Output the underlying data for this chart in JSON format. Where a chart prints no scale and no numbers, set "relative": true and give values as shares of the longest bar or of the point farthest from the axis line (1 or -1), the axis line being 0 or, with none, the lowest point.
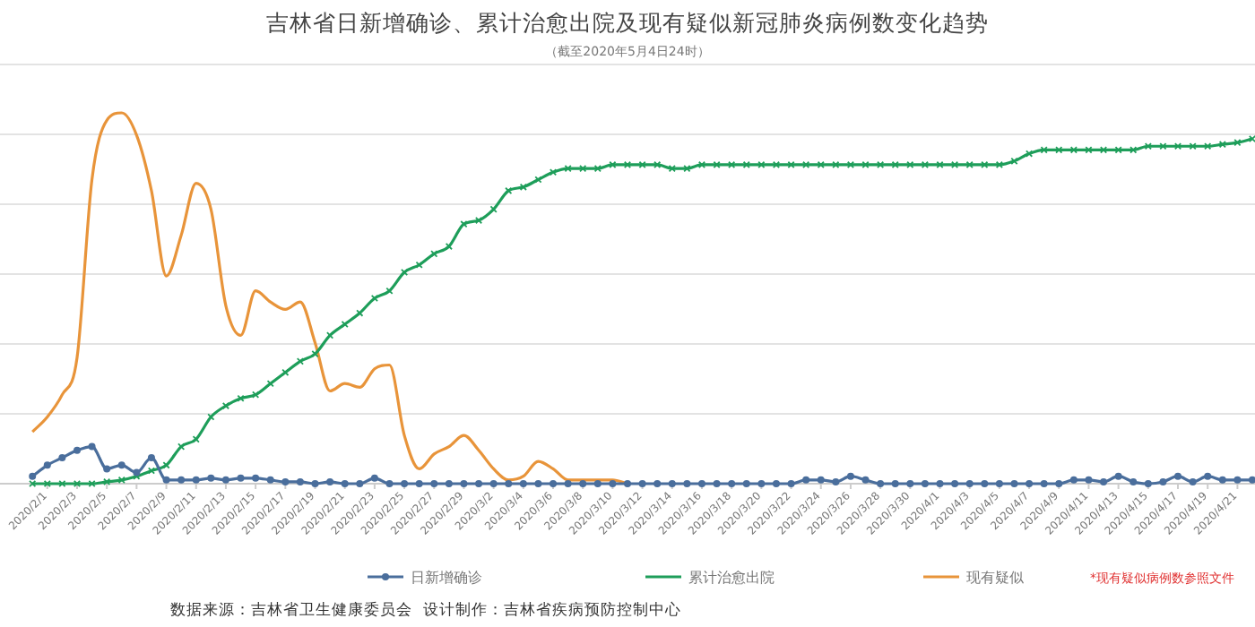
{
  "chart_data": {
    "type": "line",
    "title": "吉林省日新增确诊、累计治愈出院及现有疑似新冠肺炎病例数变化趋势",
    "subtitle": "（截至2020年5月4日24时）",
    "relative": true,
    "grid": "y",
    "legend": "bottom",
    "xlim": [
      "2020-01-29",
      "2020-04-22"
    ],
    "x": [
      "2020-01-31",
      "2020-02-01",
      "2020-02-02",
      "2020-02-03",
      "2020-02-04",
      "2020-02-05",
      "2020-02-06",
      "2020-02-07",
      "2020-02-08",
      "2020-02-09",
      "2020-02-10",
      "2020-02-11",
      "2020-02-12",
      "2020-02-13",
      "2020-02-14",
      "2020-02-15",
      "2020-02-16",
      "2020-02-17",
      "2020-02-18",
      "2020-02-19",
      "2020-02-20",
      "2020-02-21",
      "2020-02-22",
      "2020-02-23",
      "2020-02-24",
      "2020-02-25",
      "2020-02-26",
      "2020-02-27",
      "2020-02-28",
      "2020-02-29",
      "2020-03-01",
      "2020-03-02",
      "2020-03-03",
      "2020-03-04",
      "2020-03-05",
      "2020-03-06",
      "2020-03-07",
      "2020-03-08",
      "2020-03-09",
      "2020-03-10",
      "2020-03-11",
      "2020-03-12",
      "2020-03-13",
      "2020-03-14",
      "2020-03-15",
      "2020-03-16",
      "2020-03-17",
      "2020-03-18",
      "2020-03-19",
      "2020-03-20",
      "2020-03-21",
      "2020-03-22",
      "2020-03-23",
      "2020-03-24",
      "2020-03-25",
      "2020-03-26",
      "2020-03-27",
      "2020-03-28",
      "2020-03-29",
      "2020-03-30",
      "2020-03-31",
      "2020-04-01",
      "2020-04-02",
      "2020-04-03",
      "2020-04-04",
      "2020-04-05",
      "2020-04-06",
      "2020-04-07",
      "2020-04-08",
      "2020-04-09",
      "2020-04-10",
      "2020-04-11",
      "2020-04-12",
      "2020-04-13",
      "2020-04-14",
      "2020-04-15",
      "2020-04-16",
      "2020-04-17",
      "2020-04-18",
      "2020-04-19",
      "2020-04-20",
      "2020-04-21",
      "2020-04-22"
    ],
    "xticks": [
      {
        "value": "2020-02-01",
        "label": "2020/2/1"
      },
      {
        "value": "2020-02-03",
        "label": "2020/2/3"
      },
      {
        "value": "2020-02-05",
        "label": "2020/2/5"
      },
      {
        "value": "2020-02-07",
        "label": "2020/2/7"
      },
      {
        "value": "2020-02-09",
        "label": "2020/2/9"
      },
      {
        "value": "2020-02-11",
        "label": "2020/2/11"
      },
      {
        "value": "2020-02-13",
        "label": "2020/2/13"
      },
      {
        "value": "2020-02-15",
        "label": "2020/2/15"
      },
      {
        "value": "2020-02-17",
        "label": "2020/2/17"
      },
      {
        "value": "2020-02-19",
        "label": "2020/2/19"
      },
      {
        "value": "2020-02-21",
        "label": "2020/2/21"
      },
      {
        "value": "2020-02-23",
        "label": "2020/2/23"
      },
      {
        "value": "2020-02-25",
        "label": "2020/2/25"
      },
      {
        "value": "2020-02-27",
        "label": "2020/2/27"
      },
      {
        "value": "2020-02-29",
        "label": "2020/2/29"
      },
      {
        "value": "2020-03-02",
        "label": "2020/3/2"
      },
      {
        "value": "2020-03-04",
        "label": "2020/3/4"
      },
      {
        "value": "2020-03-06",
        "label": "2020/3/6"
      },
      {
        "value": "2020-03-08",
        "label": "2020/3/8"
      },
      {
        "value": "2020-03-10",
        "label": "2020/3/10"
      },
      {
        "value": "2020-03-12",
        "label": "2020/3/12"
      },
      {
        "value": "2020-03-14",
        "label": "2020/3/14"
      },
      {
        "value": "2020-03-16",
        "label": "2020/3/16"
      },
      {
        "value": "2020-03-18",
        "label": "2020/3/18"
      },
      {
        "value": "2020-03-20",
        "label": "2020/3/20"
      },
      {
        "value": "2020-03-22",
        "label": "2020/3/22"
      },
      {
        "value": "2020-03-24",
        "label": "2020/3/24"
      },
      {
        "value": "2020-03-26",
        "label": "2020/3/26"
      },
      {
        "value": "2020-03-28",
        "label": "2020/3/28"
      },
      {
        "value": "2020-03-30",
        "label": "2020/3/30"
      },
      {
        "value": "2020-04-01",
        "label": "2020/4/1"
      },
      {
        "value": "2020-04-03",
        "label": "2020/4/3"
      },
      {
        "value": "2020-04-05",
        "label": "2020/4/5"
      },
      {
        "value": "2020-04-07",
        "label": "2020/4/7"
      },
      {
        "value": "2020-04-09",
        "label": "2020/4/9"
      },
      {
        "value": "2020-04-11",
        "label": "2020/4/11"
      },
      {
        "value": "2020-04-13",
        "label": "2020/4/13"
      },
      {
        "value": "2020-04-15",
        "label": "2020/4/15"
      },
      {
        "value": "2020-04-17",
        "label": "2020/4/17"
      },
      {
        "value": "2020-04-19",
        "label": "2020/4/19"
      },
      {
        "value": "2020-04-21",
        "label": "2020/4/21"
      }
    ],
    "series": [
      {
        "name": "日新增确诊",
        "color": "#4a6e9c",
        "marker": "circle",
        "values": [
          0.02,
          0.05,
          0.07,
          0.09,
          0.1,
          0.04,
          0.05,
          0.03,
          0.07,
          0.01,
          0.01,
          0.01,
          0.015,
          0.01,
          0.015,
          0.015,
          0.01,
          0.005,
          0.005,
          0,
          0.005,
          0,
          0,
          0.015,
          0,
          0,
          0,
          0,
          0,
          0,
          0,
          0,
          0,
          0,
          0,
          0,
          0,
          0,
          0,
          0,
          0,
          0,
          0,
          0,
          0,
          0,
          0,
          0,
          0,
          0,
          0,
          0,
          0.01,
          0.01,
          0.005,
          0.02,
          0.01,
          0,
          0,
          0,
          0,
          0,
          0,
          0,
          0,
          0,
          0,
          0,
          0,
          0,
          0.01,
          0.01,
          0.005,
          0.02,
          0.005,
          0,
          0.005,
          0.02,
          0.005,
          0.02,
          0.01,
          0.01,
          0.01
        ]
      },
      {
        "name": "累计治愈出院",
        "color": "#1e9e5a",
        "marker": "cross",
        "values": [
          0,
          0,
          0,
          0,
          0,
          0.005,
          0.01,
          0.02,
          0.035,
          0.05,
          0.1,
          0.12,
          0.18,
          0.21,
          0.23,
          0.24,
          0.27,
          0.3,
          0.33,
          0.35,
          0.4,
          0.43,
          0.46,
          0.5,
          0.52,
          0.57,
          0.59,
          0.62,
          0.64,
          0.7,
          0.71,
          0.74,
          0.79,
          0.8,
          0.82,
          0.84,
          0.85,
          0.85,
          0.85,
          0.86,
          0.86,
          0.86,
          0.86,
          0.85,
          0.85,
          0.86,
          0.86,
          0.86,
          0.86,
          0.86,
          0.86,
          0.86,
          0.86,
          0.86,
          0.86,
          0.86,
          0.86,
          0.86,
          0.86,
          0.86,
          0.86,
          0.86,
          0.86,
          0.86,
          0.86,
          0.86,
          0.87,
          0.89,
          0.9,
          0.9,
          0.9,
          0.9,
          0.9,
          0.9,
          0.9,
          0.91,
          0.91,
          0.91,
          0.91,
          0.91,
          0.915,
          0.92,
          0.93
        ]
      },
      {
        "name": "现有疑似",
        "color": "#e8943a",
        "marker": "none",
        "x": [
          "2020-01-31",
          "2020-02-01",
          "2020-02-02",
          "2020-02-03",
          "2020-02-04",
          "2020-02-05",
          "2020-02-06",
          "2020-02-07",
          "2020-02-08",
          "2020-02-09",
          "2020-02-10",
          "2020-02-11",
          "2020-02-12",
          "2020-02-13",
          "2020-02-14",
          "2020-02-15",
          "2020-02-16",
          "2020-02-17",
          "2020-02-18",
          "2020-02-19",
          "2020-02-20",
          "2020-02-21",
          "2020-02-22",
          "2020-02-23",
          "2020-02-24",
          "2020-02-25",
          "2020-02-26",
          "2020-02-27",
          "2020-02-28",
          "2020-02-29",
          "2020-03-01",
          "2020-03-02",
          "2020-03-03",
          "2020-03-04",
          "2020-03-05",
          "2020-03-06",
          "2020-03-07",
          "2020-03-08",
          "2020-03-09",
          "2020-03-10",
          "2020-03-11"
        ],
        "values": [
          0.14,
          0.18,
          0.24,
          0.34,
          0.82,
          0.98,
          1,
          0.94,
          0.79,
          0.56,
          0.67,
          0.81,
          0.74,
          0.48,
          0.4,
          0.52,
          0.49,
          0.47,
          0.49,
          0.38,
          0.25,
          0.27,
          0.26,
          0.31,
          0.32,
          0.13,
          0.04,
          0.08,
          0.1,
          0.13,
          0.09,
          0.04,
          0.01,
          0.02,
          0.06,
          0.04,
          0.01,
          0.01,
          0.01,
          0.01,
          0
        ]
      }
    ],
    "annotations": [
      "*现有疑似病例数参照文件",
      "数据来源：吉林省卫生健康委员会",
      "设计制作：吉林省疾病预防控制中心"
    ]
  }
}
